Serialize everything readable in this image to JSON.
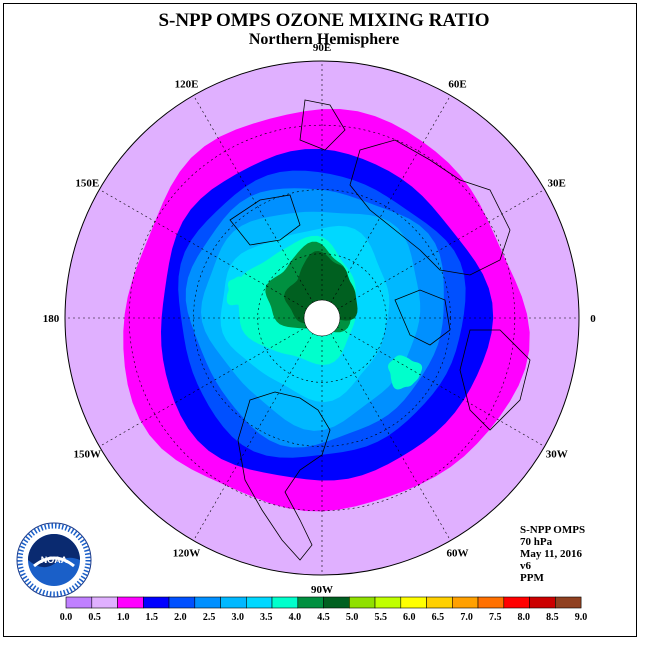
{
  "title": "S-NPP OMPS OZONE MIXING RATIO",
  "subtitle": "Northern Hemisphere",
  "info": {
    "instrument": "S-NPP OMPS",
    "level": "70 hPa",
    "date": "May 11, 2016",
    "version": "v6",
    "units": "PPM"
  },
  "logo_text": "NOAA",
  "longitude_labels": [
    "90E",
    "60E",
    "30E",
    "0",
    "30W",
    "60W",
    "90W",
    "120W",
    "150W",
    "180",
    "150E",
    "120E"
  ],
  "colors": {
    "background": "#ffffff",
    "bands": [
      "#c080ff",
      "#e0b0ff",
      "#ff00ff",
      "#0000ff",
      "#0050ff",
      "#0090ff",
      "#00b8ff",
      "#00d8ff",
      "#00ffcc",
      "#009040",
      "#006020",
      "#90e000",
      "#c0ff00",
      "#ffff00",
      "#ffd000",
      "#ffa000",
      "#ff7000",
      "#ff0000",
      "#cc0000",
      "#904020"
    ]
  },
  "chart_data": {
    "type": "heatmap",
    "projection": "north polar stereographic",
    "title": "S-NPP OMPS OZONE MIXING RATIO",
    "subtitle": "Northern Hemisphere",
    "units": "PPM",
    "pressure_level": "70 hPa",
    "date": "May 11, 2016",
    "version": "v6",
    "colorbar": {
      "ticks": [
        0.0,
        0.5,
        1.0,
        1.5,
        2.0,
        2.5,
        3.0,
        3.5,
        4.0,
        4.5,
        5.0,
        5.5,
        6.0,
        6.5,
        7.0,
        7.5,
        8.0,
        8.5,
        9.0
      ],
      "tick_labels": [
        "0.0",
        "0.5",
        "1.0",
        "1.5",
        "2.0",
        "2.5",
        "3.0",
        "3.5",
        "4.0",
        "4.5",
        "5.0",
        "5.5",
        "6.0",
        "6.5",
        "7.0",
        "7.5",
        "8.0",
        "8.5",
        "9.0"
      ],
      "colors": [
        "#c080ff",
        "#e0b0ff",
        "#ff00ff",
        "#0000ff",
        "#0050ff",
        "#0090ff",
        "#00b8ff",
        "#00d8ff",
        "#00ffcc",
        "#009040",
        "#006020",
        "#90e000",
        "#c0ff00",
        "#ffff00",
        "#ffd000",
        "#ffa000",
        "#ff7000",
        "#ff0000",
        "#cc0000",
        "#904020"
      ]
    },
    "field_levels_ppm": [
      {
        "range": [
          0.5,
          1.0
        ],
        "region": "outer ring (low latitudes)"
      },
      {
        "range": [
          1.0,
          1.5
        ],
        "region": "subtropical ring"
      },
      {
        "range": [
          1.5,
          2.0
        ],
        "region": "ring"
      },
      {
        "range": [
          2.0,
          2.5
        ],
        "region": "ring"
      },
      {
        "range": [
          2.5,
          3.0
        ],
        "region": "mid-latitude ring"
      },
      {
        "range": [
          3.0,
          3.5
        ],
        "region": "mid-latitude ring"
      },
      {
        "range": [
          3.5,
          4.0
        ],
        "region": "high-latitude ring"
      },
      {
        "range": [
          4.0,
          4.5
        ],
        "region": "high latitudes"
      },
      {
        "range": [
          4.5,
          5.0
        ],
        "region": "polar maximum"
      }
    ]
  }
}
